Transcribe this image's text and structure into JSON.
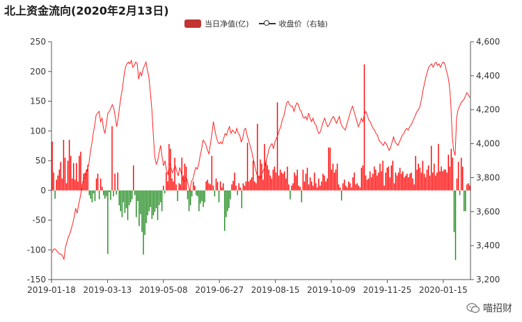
{
  "title": "北上资金流向(2020年2月13日)",
  "legend": {
    "bar_label": "当日净值(亿)",
    "line_label": "收盘价（右轴)"
  },
  "watermark": "喵招财",
  "colors": {
    "positive": "#ff0000",
    "negative": "#1e8a1e",
    "line": "#ff2020",
    "legend_bar": "#c23531",
    "axis": "#555555"
  },
  "chart_data": [
    {
      "type": "bar",
      "title": "北上资金流向(2020年2月13日)",
      "series_name": "当日净值(亿)",
      "axis": "left",
      "ylim": [
        -150,
        250
      ],
      "yticks": [
        -150,
        -100,
        -50,
        0,
        50,
        100,
        150,
        200,
        250
      ],
      "x_ticks": [
        "2019-01-18",
        "2019-03-13",
        "2019-05-08",
        "2019-06-27",
        "2019-08-15",
        "2019-10-09",
        "2019-11-25",
        "2020-01-15"
      ],
      "values": [
        82,
        30,
        -14,
        18,
        25,
        35,
        48,
        20,
        85,
        55,
        12,
        50,
        85,
        58,
        20,
        46,
        18,
        46,
        15,
        58,
        65,
        10,
        28,
        30,
        35,
        43,
        -8,
        -14,
        -20,
        -5,
        -18,
        20,
        28,
        -15,
        20,
        6,
        -8,
        -14,
        -10,
        -107,
        -3,
        -16,
        108,
        -10,
        28,
        -7,
        30,
        -25,
        -35,
        -45,
        -20,
        -38,
        -30,
        -50,
        -25,
        -20,
        -15,
        42,
        -8,
        -45,
        -18,
        -60,
        -40,
        -70,
        -108,
        -75,
        -55,
        -42,
        -35,
        -28,
        -48,
        -42,
        -36,
        -30,
        -50,
        -25,
        -20,
        -35,
        8,
        -5,
        30,
        15,
        78,
        70,
        20,
        15,
        55,
        10,
        -18,
        12,
        10,
        55,
        25,
        45,
        40,
        -15,
        -35,
        -25,
        -10,
        15,
        8,
        -8,
        -10,
        -35,
        -22,
        -18,
        -28,
        -20,
        15,
        18,
        12,
        10,
        58,
        8,
        -10,
        20,
        14,
        -20,
        15,
        5,
        12,
        -68,
        -45,
        -35,
        -30,
        -15,
        10,
        16,
        30,
        8,
        -8,
        12,
        5,
        -30,
        12,
        8,
        15,
        80,
        15,
        18,
        22,
        50,
        15,
        12,
        112,
        25,
        52,
        45,
        18,
        78,
        50,
        42,
        35,
        25,
        20,
        35,
        40,
        30,
        148,
        25,
        35,
        30,
        28,
        32,
        20,
        40,
        10,
        -15,
        8,
        12,
        30,
        25,
        35,
        8,
        6,
        -20,
        35,
        15,
        28,
        38,
        10,
        22,
        15,
        8,
        30,
        12,
        5,
        20,
        8,
        15,
        28,
        25,
        15,
        20,
        72,
        72,
        35,
        45,
        30,
        35,
        45,
        10,
        5,
        -17,
        12,
        18,
        8,
        5,
        15,
        12,
        5,
        22,
        30,
        10,
        12,
        8,
        5,
        38,
        42,
        212,
        25,
        18,
        20,
        32,
        22,
        28,
        40,
        35,
        25,
        30,
        45,
        32,
        50,
        8,
        30,
        38,
        40,
        22,
        42,
        50,
        12,
        30,
        25,
        30,
        38,
        28,
        32,
        22,
        25,
        28,
        22,
        28,
        30,
        20,
        10,
        58,
        35,
        45,
        38,
        30,
        50,
        28,
        22,
        35,
        42,
        25,
        75,
        30,
        45,
        25,
        30,
        78,
        32,
        40,
        32,
        35,
        35,
        30,
        60,
        40,
        70,
        55,
        -70,
        -117,
        20,
        48,
        -8,
        55,
        40,
        -35,
        -35,
        10,
        12,
        8
      ]
    },
    {
      "type": "line",
      "series_name": "收盘价（右轴)",
      "axis": "right",
      "ylim": [
        3200,
        4600
      ],
      "yticks": [
        "3,200",
        "3,400",
        "3,600",
        "3,800",
        "4,000",
        "4,200",
        "4,400",
        "4,600"
      ],
      "values": [
        3360,
        3380,
        3380,
        3370,
        3360,
        3350,
        3350,
        3340,
        3320,
        3390,
        3420,
        3450,
        3470,
        3500,
        3530,
        3570,
        3620,
        3590,
        3640,
        3680,
        3730,
        3780,
        3800,
        3820,
        3850,
        3880,
        3950,
        4000,
        4060,
        4110,
        4170,
        4180,
        4190,
        4130,
        4150,
        4090,
        4060,
        4120,
        4180,
        4190,
        4210,
        4230,
        4210,
        4160,
        4100,
        4150,
        4220,
        4280,
        4330,
        4400,
        4450,
        4470,
        4480,
        4470,
        4490,
        4450,
        4460,
        4480,
        4470,
        4380,
        4420,
        4400,
        4440,
        4460,
        4480,
        4430,
        4390,
        4300,
        4200,
        4050,
        3920,
        3880,
        3900,
        3950,
        3990,
        3920,
        3870,
        3900,
        3840,
        3820,
        3880,
        3860,
        3830,
        3850,
        3870,
        3840,
        3810,
        3860,
        3830,
        3790,
        3780,
        3800,
        3790,
        3750,
        3720,
        3780,
        3790,
        3830,
        3860,
        3850,
        3880,
        3930,
        3970,
        4020,
        4010,
        3990,
        3960,
        3940,
        4000,
        4060,
        4130,
        4080,
        4040,
        4010,
        4000,
        4010,
        4000,
        4030,
        4060,
        4050,
        4080,
        4100,
        4060,
        4080,
        4070,
        4060,
        4090,
        4060,
        4050,
        4010,
        4030,
        4080,
        4090,
        4050,
        4020,
        3990,
        3960,
        3920,
        3880,
        3840,
        3810,
        3800,
        3790,
        3820,
        3840,
        3860,
        3900,
        3930,
        3970,
        3990,
        4000,
        3970,
        4010,
        4030,
        4050,
        4080,
        4100,
        4140,
        4160,
        4200,
        4240,
        4250,
        4230,
        4220,
        4220,
        4190,
        4220,
        4240,
        4230,
        4200,
        4190,
        4160,
        4150,
        4160,
        4140,
        4180,
        4150,
        4130,
        4150,
        4120,
        4110,
        4080,
        4060,
        4070,
        4100,
        4130,
        4150,
        4120,
        4100,
        4110,
        4130,
        4150,
        4160,
        4140,
        4120,
        4140,
        4160,
        4120,
        4100,
        4090,
        4080,
        4110,
        4140,
        4170,
        4200,
        4220,
        4190,
        4160,
        4130,
        4100,
        4120,
        4150,
        4130,
        4170,
        4190,
        4170,
        4140,
        4130,
        4110,
        4090,
        4080,
        4060,
        4050,
        4020,
        4010,
        4000,
        3990,
        4010,
        4000,
        3980,
        3960,
        3980,
        4010,
        4040,
        4010,
        4000,
        3990,
        4010,
        4030,
        4050,
        4060,
        4080,
        4090,
        4080,
        4100,
        4110,
        4130,
        4150,
        4170,
        4190,
        4200,
        4220,
        4260,
        4310,
        4350,
        4390,
        4420,
        4450,
        4460,
        4470,
        4450,
        4470,
        4480,
        4460,
        4470,
        4450,
        4470,
        4480,
        4470,
        4430,
        4400,
        4350,
        4250,
        4050,
        3960,
        3930,
        4150,
        4200,
        4220,
        4240,
        4250,
        4260,
        4280,
        4300,
        4290,
        4270
      ]
    }
  ]
}
